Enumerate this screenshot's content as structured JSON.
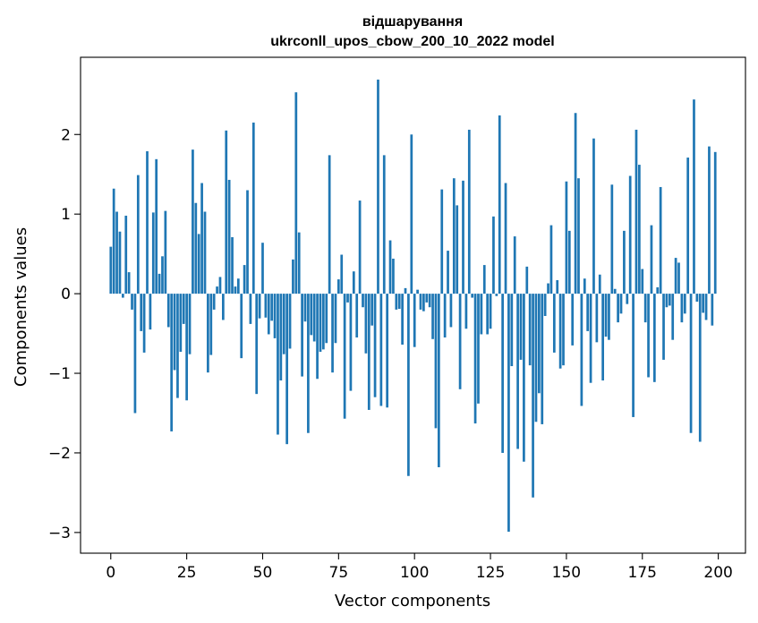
{
  "chart_data": {
    "type": "bar",
    "title_line1": "відшарування",
    "title_line2": "ukrconll_upos_cbow_200_10_2022 model",
    "xlabel": "Vector components",
    "ylabel": "Components values",
    "xlim": [
      -9.95,
      208.95
    ],
    "ylim": [
      -3.26,
      2.97
    ],
    "xticks": [
      0,
      25,
      50,
      75,
      100,
      125,
      150,
      175,
      200
    ],
    "xtick_labels": [
      "0",
      "25",
      "50",
      "75",
      "100",
      "125",
      "150",
      "175",
      "200"
    ],
    "yticks": [
      -3,
      -2,
      -1,
      0,
      1,
      2
    ],
    "ytick_labels": [
      "−3",
      "−2",
      "−1",
      "0",
      "1",
      "2"
    ],
    "bar_color": "#1f77b4",
    "grid": false,
    "x": [
      0,
      1,
      2,
      3,
      4,
      5,
      6,
      7,
      8,
      9,
      10,
      11,
      12,
      13,
      14,
      15,
      16,
      17,
      18,
      19,
      20,
      21,
      22,
      23,
      24,
      25,
      26,
      27,
      28,
      29,
      30,
      31,
      32,
      33,
      34,
      35,
      36,
      37,
      38,
      39,
      40,
      41,
      42,
      43,
      44,
      45,
      46,
      47,
      48,
      49,
      50,
      51,
      52,
      53,
      54,
      55,
      56,
      57,
      58,
      59,
      60,
      61,
      62,
      63,
      64,
      65,
      66,
      67,
      68,
      69,
      70,
      71,
      72,
      73,
      74,
      75,
      76,
      77,
      78,
      79,
      80,
      81,
      82,
      83,
      84,
      85,
      86,
      87,
      88,
      89,
      90,
      91,
      92,
      93,
      94,
      95,
      96,
      97,
      98,
      99,
      100,
      101,
      102,
      103,
      104,
      105,
      106,
      107,
      108,
      109,
      110,
      111,
      112,
      113,
      114,
      115,
      116,
      117,
      118,
      119,
      120,
      121,
      122,
      123,
      124,
      125,
      126,
      127,
      128,
      129,
      130,
      131,
      132,
      133,
      134,
      135,
      136,
      137,
      138,
      139,
      140,
      141,
      142,
      143,
      144,
      145,
      146,
      147,
      148,
      149,
      150,
      151,
      152,
      153,
      154,
      155,
      156,
      157,
      158,
      159,
      160,
      161,
      162,
      163,
      164,
      165,
      166,
      167,
      168,
      169,
      170,
      171,
      172,
      173,
      174,
      175,
      176,
      177,
      178,
      179,
      180,
      181,
      182,
      183,
      184,
      185,
      186,
      187,
      188,
      189,
      190,
      191,
      192,
      193,
      194,
      195,
      196,
      197,
      198,
      199
    ],
    "values": [
      0.59,
      1.32,
      1.03,
      0.78,
      -0.05,
      0.98,
      0.27,
      -0.2,
      -1.5,
      1.49,
      -0.47,
      -0.74,
      1.79,
      -0.45,
      1.02,
      1.69,
      0.25,
      0.47,
      1.04,
      -0.42,
      -1.73,
      -0.96,
      -1.31,
      -0.73,
      -0.38,
      -1.34,
      -0.76,
      1.81,
      1.14,
      0.75,
      1.39,
      1.03,
      -0.99,
      -0.77,
      -0.2,
      0.09,
      0.21,
      -0.33,
      2.05,
      1.43,
      0.71,
      0.09,
      0.19,
      -0.81,
      0.36,
      1.3,
      -0.38,
      2.15,
      -1.26,
      -0.31,
      0.64,
      -0.3,
      -0.51,
      -0.34,
      -0.56,
      -1.77,
      -1.09,
      -0.76,
      -1.89,
      -0.69,
      0.43,
      2.53,
      0.77,
      -1.04,
      -0.35,
      -1.75,
      -0.52,
      -0.6,
      -1.07,
      -0.73,
      -0.7,
      -0.62,
      1.74,
      -0.99,
      -0.62,
      0.18,
      0.49,
      -1.57,
      -0.11,
      -1.22,
      0.28,
      -0.55,
      1.17,
      -0.17,
      -0.75,
      -1.46,
      -0.4,
      -1.3,
      2.69,
      -1.41,
      1.74,
      -1.43,
      0.67,
      0.44,
      -0.2,
      -0.19,
      -0.64,
      0.07,
      -2.29,
      2.0,
      -0.67,
      0.05,
      -0.2,
      -0.22,
      -0.11,
      -0.17,
      -0.57,
      -1.69,
      -2.18,
      1.31,
      -0.55,
      0.54,
      -0.42,
      1.45,
      1.11,
      -1.2,
      1.42,
      -0.44,
      2.06,
      -0.05,
      -1.63,
      -1.38,
      -0.51,
      0.36,
      -0.51,
      -0.44,
      0.97,
      -0.03,
      2.24,
      -2.0,
      1.39,
      -2.99,
      -0.91,
      0.72,
      -1.95,
      -0.83,
      -2.11,
      0.34,
      -0.9,
      -2.56,
      -1.61,
      -1.25,
      -1.64,
      -0.28,
      0.13,
      0.86,
      -0.74,
      0.17,
      -0.94,
      -0.9,
      1.41,
      0.79,
      -0.65,
      2.27,
      1.45,
      -1.41,
      0.19,
      -0.47,
      -1.12,
      1.95,
      -0.61,
      0.24,
      -1.09,
      -0.54,
      -0.58,
      1.37,
      0.06,
      -0.36,
      -0.25,
      0.79,
      -0.13,
      1.48,
      -1.55,
      2.06,
      1.62,
      0.31,
      -0.36,
      -1.05,
      0.86,
      -1.11,
      0.08,
      1.34,
      -0.83,
      -0.17,
      -0.15,
      -0.58,
      0.45,
      0.39,
      -0.36,
      -0.25,
      1.71,
      -1.75,
      2.44,
      -0.1,
      -1.86,
      -0.24,
      -0.33,
      1.85,
      -0.4,
      1.78
    ]
  }
}
